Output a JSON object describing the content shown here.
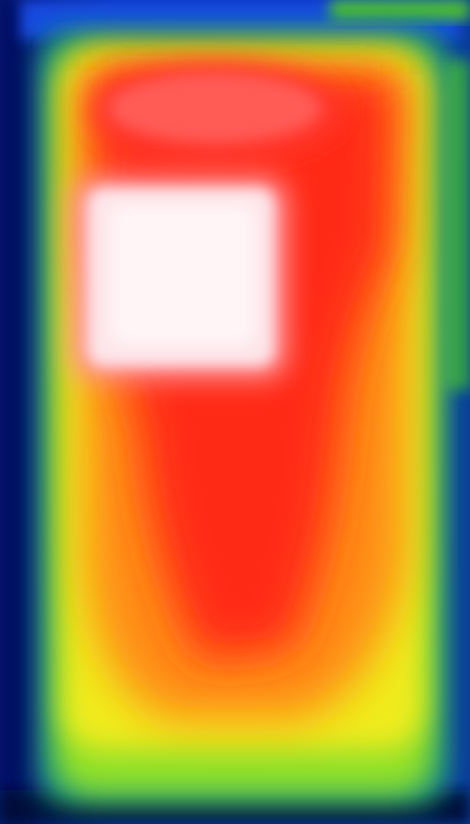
{
  "image": {
    "kind": "thermal-camera-view",
    "subject": "heated-rectangular-panel",
    "palette": {
      "cold": "#07106e",
      "cool": "#1a4cff",
      "mid_cool": "#14a06a",
      "mid": "#7fdc2a",
      "warm": "#f2f01a",
      "hot": "#ff8a10",
      "very_hot": "#ff2a14",
      "hottest": "#fff0f2"
    }
  }
}
